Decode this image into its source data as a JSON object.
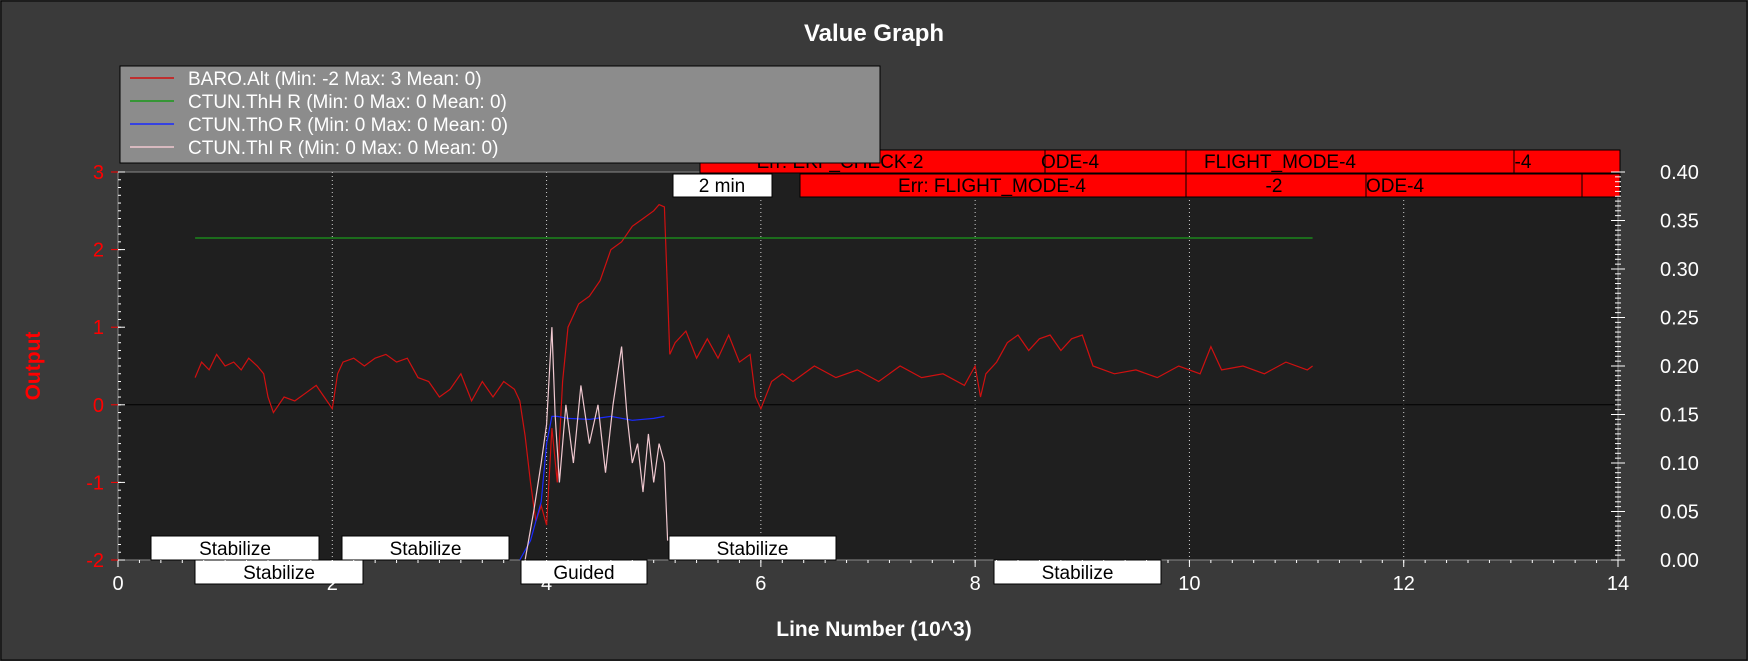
{
  "chart_data": {
    "type": "line",
    "title": "Value Graph",
    "xlabel": "Line Number (10^3)",
    "ylabel": "Output",
    "xlim": [
      0,
      14
    ],
    "ylim": [
      -2,
      3
    ],
    "y2lim": [
      0,
      0.4
    ],
    "x_ticks": [
      0,
      2,
      4,
      6,
      8,
      10,
      12,
      14
    ],
    "y_ticks": [
      -2,
      -1,
      0,
      1,
      2,
      3
    ],
    "y2_ticks": [
      0,
      0.05,
      0.1,
      0.15,
      0.2,
      0.25,
      0.3,
      0.35,
      0.4
    ],
    "y2_tick_labels": [
      "0.00",
      "0.05",
      "0.10",
      "0.15",
      "0.20",
      "0.25",
      "0.30",
      "0.35",
      "0.40"
    ],
    "grid": "x-dotted",
    "legend_placement": "top-left",
    "colors": {
      "background": "#3a3a3a",
      "plot_area": "#1f1f1f",
      "axis_left": "#ff0000",
      "legend_bg": "#8c8c8c",
      "err_box": "#ff0000",
      "mode_box": "#ffffff"
    },
    "series": [
      {
        "name": "BARO.Alt (Min: -2 Max: 3 Mean: 0)",
        "color": "#d01010",
        "axis": "left",
        "x": [
          0.72,
          0.78,
          0.85,
          0.92,
          1.0,
          1.08,
          1.15,
          1.22,
          1.3,
          1.36,
          1.4,
          1.45,
          1.55,
          1.65,
          1.75,
          1.85,
          1.95,
          2.0,
          2.05,
          2.1,
          2.2,
          2.3,
          2.4,
          2.5,
          2.6,
          2.7,
          2.8,
          2.9,
          3.0,
          3.1,
          3.2,
          3.3,
          3.4,
          3.5,
          3.6,
          3.7,
          3.75,
          3.8,
          3.85,
          3.9,
          3.95,
          4.0,
          4.05,
          4.1,
          4.15,
          4.2,
          4.3,
          4.4,
          4.5,
          4.6,
          4.7,
          4.8,
          4.9,
          5.0,
          5.05,
          5.1,
          5.15,
          5.2,
          5.3,
          5.4,
          5.5,
          5.6,
          5.7,
          5.8,
          5.9,
          5.95,
          6.0,
          6.1,
          6.2,
          6.3,
          6.5,
          6.7,
          6.9,
          7.1,
          7.3,
          7.5,
          7.7,
          7.9,
          8.0,
          8.05,
          8.1,
          8.2,
          8.3,
          8.4,
          8.5,
          8.6,
          8.7,
          8.8,
          8.9,
          9.0,
          9.1,
          9.3,
          9.5,
          9.7,
          9.9,
          10.1,
          10.2,
          10.3,
          10.5,
          10.7,
          10.9,
          11.1,
          11.15
        ],
        "y": [
          0.35,
          0.55,
          0.45,
          0.65,
          0.5,
          0.55,
          0.45,
          0.6,
          0.5,
          0.4,
          0.1,
          -0.1,
          0.1,
          0.05,
          0.15,
          0.25,
          0.05,
          -0.05,
          0.4,
          0.55,
          0.6,
          0.5,
          0.6,
          0.65,
          0.55,
          0.6,
          0.35,
          0.3,
          0.1,
          0.2,
          0.4,
          0.05,
          0.3,
          0.1,
          0.3,
          0.2,
          0.05,
          -0.4,
          -1.0,
          -1.5,
          -1.3,
          -1.55,
          -0.3,
          -1.0,
          0.3,
          1.0,
          1.3,
          1.4,
          1.6,
          2.0,
          2.1,
          2.3,
          2.4,
          2.5,
          2.58,
          2.55,
          0.65,
          0.8,
          0.95,
          0.6,
          0.85,
          0.6,
          0.9,
          0.55,
          0.65,
          0.1,
          -0.05,
          0.3,
          0.4,
          0.3,
          0.5,
          0.35,
          0.45,
          0.3,
          0.5,
          0.35,
          0.4,
          0.25,
          0.5,
          0.1,
          0.4,
          0.55,
          0.8,
          0.9,
          0.7,
          0.85,
          0.9,
          0.7,
          0.85,
          0.9,
          0.5,
          0.4,
          0.45,
          0.35,
          0.5,
          0.4,
          0.75,
          0.45,
          0.5,
          0.4,
          0.55,
          0.45,
          0.5
        ]
      },
      {
        "name": "CTUN.ThH R (Min: 0 Max: 0 Mean: 0)",
        "color": "#1a9a1a",
        "axis": "right",
        "x": [
          0.72,
          11.15
        ],
        "y": [
          0.332,
          0.332
        ]
      },
      {
        "name": "CTUN.ThO R (Min: 0 Max: 0 Mean: 0)",
        "color": "#1a2aff",
        "axis": "right",
        "x": [
          3.75,
          3.85,
          3.95,
          4.0,
          4.05,
          4.1,
          4.2,
          4.4,
          4.6,
          4.8,
          5.0,
          5.1
        ],
        "y": [
          0.0,
          0.02,
          0.06,
          0.12,
          0.148,
          0.148,
          0.146,
          0.145,
          0.148,
          0.144,
          0.146,
          0.148
        ]
      },
      {
        "name": "CTUN.ThI R (Min: 0 Max: 0 Mean: 0)",
        "color": "#f0c8d0",
        "axis": "right",
        "x": [
          3.8,
          3.88,
          3.95,
          4.0,
          4.05,
          4.08,
          4.12,
          4.18,
          4.25,
          4.32,
          4.4,
          4.48,
          4.55,
          4.62,
          4.7,
          4.75,
          4.8,
          4.85,
          4.9,
          4.95,
          5.0,
          5.05,
          5.1,
          5.13
        ],
        "y": [
          0.0,
          0.05,
          0.1,
          0.14,
          0.24,
          0.15,
          0.08,
          0.16,
          0.1,
          0.18,
          0.12,
          0.16,
          0.09,
          0.16,
          0.22,
          0.15,
          0.1,
          0.12,
          0.07,
          0.13,
          0.08,
          0.12,
          0.1,
          0.02
        ]
      }
    ],
    "annotations": {
      "top_row": [
        {
          "label": "Err: EKF_CHECK-2",
          "x": 4.5
        },
        {
          "label": "ODE-4",
          "x": 8.0
        },
        {
          "label": "FLIGHT_MODE-4",
          "x": 10.8
        },
        {
          "label": "-4",
          "x": 13.25
        }
      ],
      "top_row_2": [
        {
          "label": "Err: FLIGHT_MODE-4",
          "x": 6.2
        },
        {
          "label": "-2",
          "x": 10.7
        },
        {
          "label": "ODE-4",
          "x": 12.0
        }
      ],
      "time_marker": {
        "label": "2 min",
        "x": 5.15
      },
      "modes_row_1": [
        {
          "label": "Stabilize",
          "x": 0.3
        },
        {
          "label": "Stabilize",
          "x": 2.1
        },
        {
          "label": "Stabilize",
          "x": 5.1
        }
      ],
      "modes_row_2": [
        {
          "label": "Stabilize",
          "x": 0.72
        },
        {
          "label": "Guided",
          "x": 3.75
        },
        {
          "label": "Stabilize",
          "x": 8.18
        }
      ]
    }
  }
}
